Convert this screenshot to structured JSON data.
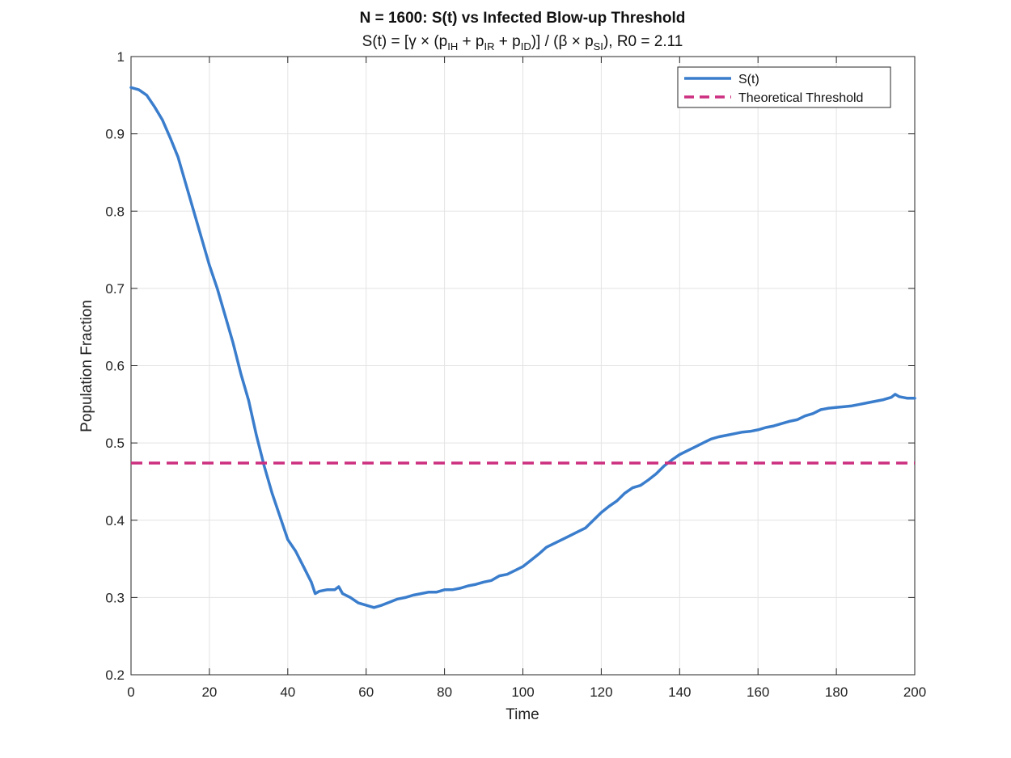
{
  "chart_data": {
    "type": "line",
    "title": "N = 1600: S(t) vs Infected Blow-up Threshold",
    "subtitle": {
      "lead": "S(t)  =  [γ  ×  (p",
      "sub1": "IH",
      "mid1": "  +  p",
      "sub2": "IR",
      "mid2": "  +  p",
      "sub3": "ID",
      "mid3": ")]  /  (β  ×  p",
      "sub4": "SI",
      "tail": "),  R0  =  2.11"
    },
    "xlabel": "Time",
    "ylabel": "Population Fraction",
    "xlim": [
      0,
      200
    ],
    "ylim": [
      0.2,
      1
    ],
    "xticks": [
      "0",
      "20",
      "40",
      "60",
      "80",
      "100",
      "120",
      "140",
      "160",
      "180",
      "200"
    ],
    "yticks": [
      "0.2",
      "0.3",
      "0.4",
      "0.5",
      "0.6",
      "0.7",
      "0.8",
      "0.9",
      "1"
    ],
    "grid": true,
    "legend_position": "top-right",
    "series": [
      {
        "name": "S(t)",
        "color": "#3a7dcc",
        "style": "solid",
        "x": [
          0,
          2,
          4,
          6,
          8,
          10,
          12,
          14,
          16,
          18,
          20,
          22,
          24,
          26,
          28,
          30,
          32,
          34,
          36,
          38,
          40,
          42,
          44,
          46,
          47,
          48,
          50,
          52,
          53,
          54,
          56,
          58,
          60,
          62,
          64,
          66,
          68,
          70,
          72,
          74,
          76,
          78,
          80,
          82,
          84,
          86,
          88,
          90,
          92,
          94,
          96,
          98,
          100,
          102,
          104,
          106,
          108,
          110,
          112,
          114,
          116,
          118,
          120,
          122,
          124,
          126,
          128,
          130,
          132,
          134,
          136,
          138,
          140,
          142,
          144,
          146,
          148,
          150,
          152,
          154,
          156,
          158,
          160,
          162,
          164,
          166,
          168,
          170,
          172,
          174,
          176,
          178,
          180,
          182,
          184,
          186,
          188,
          190,
          192,
          194,
          195,
          196,
          198,
          200
        ],
        "values": [
          0.96,
          0.957,
          0.95,
          0.935,
          0.918,
          0.895,
          0.87,
          0.835,
          0.8,
          0.765,
          0.73,
          0.7,
          0.665,
          0.63,
          0.59,
          0.555,
          0.51,
          0.47,
          0.435,
          0.405,
          0.375,
          0.36,
          0.34,
          0.32,
          0.305,
          0.308,
          0.31,
          0.31,
          0.314,
          0.305,
          0.3,
          0.293,
          0.29,
          0.287,
          0.29,
          0.294,
          0.298,
          0.3,
          0.303,
          0.305,
          0.307,
          0.307,
          0.31,
          0.31,
          0.312,
          0.315,
          0.317,
          0.32,
          0.322,
          0.328,
          0.33,
          0.335,
          0.34,
          0.348,
          0.356,
          0.365,
          0.37,
          0.375,
          0.38,
          0.385,
          0.39,
          0.4,
          0.41,
          0.418,
          0.425,
          0.435,
          0.442,
          0.445,
          0.452,
          0.46,
          0.47,
          0.478,
          0.485,
          0.49,
          0.495,
          0.5,
          0.505,
          0.508,
          0.51,
          0.512,
          0.514,
          0.515,
          0.517,
          0.52,
          0.522,
          0.525,
          0.528,
          0.53,
          0.535,
          0.538,
          0.543,
          0.545,
          0.546,
          0.547,
          0.548,
          0.55,
          0.552,
          0.554,
          0.556,
          0.559,
          0.563,
          0.56,
          0.558,
          0.558
        ]
      },
      {
        "name": "Theoretical Threshold",
        "color": "#cc2f7f",
        "style": "dashed",
        "x": [
          0,
          200
        ],
        "values": [
          0.474,
          0.474
        ]
      }
    ]
  }
}
